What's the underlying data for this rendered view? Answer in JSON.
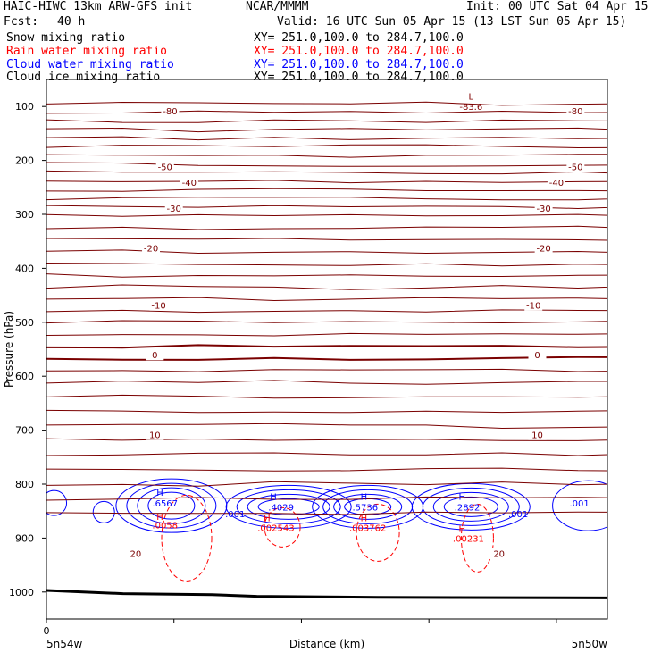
{
  "header": {
    "model": "HAIC-HIWC 13km ARW-GFS init",
    "center": "NCAR/MMMM",
    "init": "Init: 00 UTC Sat 04 Apr 15",
    "fcst_label": "Fcst:",
    "fcst_value": "40 h",
    "valid": "Valid: 16 UTC Sun 05 Apr 15 (13 LST Sun 05 Apr 15)"
  },
  "fields": [
    {
      "name": "Snow mixing ratio",
      "xy": "XY= 251.0,100.0 to 284.7,100.0",
      "color": "#000000"
    },
    {
      "name": "Rain water mixing ratio",
      "xy": "XY= 251.0,100.0 to 284.7,100.0",
      "color": "#ff0000"
    },
    {
      "name": "Cloud water mixing ratio",
      "xy": "XY= 251.0,100.0 to 284.7,100.0",
      "color": "#0000ff"
    },
    {
      "name": "Cloud ice mixing ratio",
      "xy": "XY= 251.0,100.0 to 284.7,100.0",
      "color": "#000000"
    }
  ],
  "chart_data": {
    "type": "contour-cross-section",
    "ylabel": "Pressure (hPa)",
    "xlabel": "Distance (km)",
    "x_tick_label": "0",
    "x_endpoints": [
      "5n54w",
      "5n50w"
    ],
    "y_ticks": [
      100,
      200,
      300,
      400,
      500,
      600,
      700,
      800,
      900,
      1000
    ],
    "ylim": [
      1050,
      50
    ],
    "x_ticks": [
      0,
      1,
      2,
      3,
      4
    ],
    "x_range": [
      0,
      4.4
    ],
    "temperature_contours": [
      {
        "label": "-80",
        "p": 110
      },
      {
        "label": "-50",
        "p": 213
      },
      {
        "label": "-40",
        "p": 242
      },
      {
        "label": "-30",
        "p": 290
      },
      {
        "label": "-20",
        "p": 364
      },
      {
        "label": "-10",
        "p": 470
      },
      {
        "label": "0",
        "p": 562
      },
      {
        "label": "10",
        "p": 710
      },
      {
        "label": "20",
        "p": 930
      }
    ],
    "temperature_contour_labels": [
      {
        "text": "-80",
        "x": 0.97,
        "p": 110
      },
      {
        "text": "-80",
        "x": 4.15,
        "p": 110
      },
      {
        "text": "-50",
        "x": 0.93,
        "p": 213
      },
      {
        "text": "-50",
        "x": 4.15,
        "p": 213
      },
      {
        "text": "-40",
        "x": 1.12,
        "p": 242
      },
      {
        "text": "-40",
        "x": 4.0,
        "p": 242
      },
      {
        "text": "-30",
        "x": 1.0,
        "p": 290
      },
      {
        "text": "-30",
        "x": 3.9,
        "p": 290
      },
      {
        "text": "-20",
        "x": 0.82,
        "p": 364
      },
      {
        "text": "-20",
        "x": 3.9,
        "p": 364
      },
      {
        "text": "-10",
        "x": 0.88,
        "p": 470
      },
      {
        "text": "-10",
        "x": 3.82,
        "p": 470
      },
      {
        "text": "0",
        "x": 0.85,
        "p": 562
      },
      {
        "text": "0",
        "x": 3.85,
        "p": 562
      },
      {
        "text": "10",
        "x": 0.85,
        "p": 710
      },
      {
        "text": "10",
        "x": 3.85,
        "p": 710
      },
      {
        "text": "20",
        "x": 0.7,
        "p": 930
      },
      {
        "text": "20",
        "x": 3.55,
        "p": 930
      }
    ],
    "min_max": [
      {
        "text": "L",
        "x": 3.33,
        "p": 81,
        "color": "#800000"
      },
      {
        "text": "-83.6",
        "x": 3.33,
        "p": 100,
        "color": "#800000"
      },
      {
        "text": "H",
        "x": 0.89,
        "p": 815,
        "color": "#0000ff"
      },
      {
        "text": ".6567",
        "x": 0.93,
        "p": 835,
        "color": "#0000ff"
      },
      {
        "text": "H",
        "x": 0.89,
        "p": 860,
        "color": "#ff0000"
      },
      {
        "text": ".0058",
        "x": 0.93,
        "p": 875,
        "color": "#ff0000"
      },
      {
        "text": "H",
        "x": 1.78,
        "p": 822,
        "color": "#0000ff"
      },
      {
        "text": ".4029",
        "x": 1.84,
        "p": 842,
        "color": "#0000ff"
      },
      {
        "text": "H",
        "x": 1.73,
        "p": 862,
        "color": "#ff0000"
      },
      {
        "text": ".002543",
        "x": 1.8,
        "p": 880,
        "color": "#ff0000"
      },
      {
        "text": "H",
        "x": 2.49,
        "p": 822,
        "color": "#0000ff"
      },
      {
        "text": ".5736",
        "x": 2.5,
        "p": 842,
        "color": "#0000ff"
      },
      {
        "text": "H",
        "x": 2.49,
        "p": 862,
        "color": "#ff0000"
      },
      {
        "text": ".003762",
        "x": 2.52,
        "p": 880,
        "color": "#ff0000"
      },
      {
        "text": "H",
        "x": 3.26,
        "p": 822,
        "color": "#0000ff"
      },
      {
        "text": ".2892",
        "x": 3.3,
        "p": 842,
        "color": "#0000ff"
      },
      {
        "text": "H",
        "x": 3.26,
        "p": 882,
        "color": "#ff0000"
      },
      {
        "text": ".00231",
        "x": 3.31,
        "p": 900,
        "color": "#ff0000"
      }
    ],
    "cloud_contour_labels": [
      {
        "text": ".001",
        "x": 1.48,
        "p": 855
      },
      {
        "text": ".001",
        "x": 3.7,
        "p": 855
      },
      {
        "text": ".001",
        "x": 4.18,
        "p": 835
      }
    ]
  }
}
